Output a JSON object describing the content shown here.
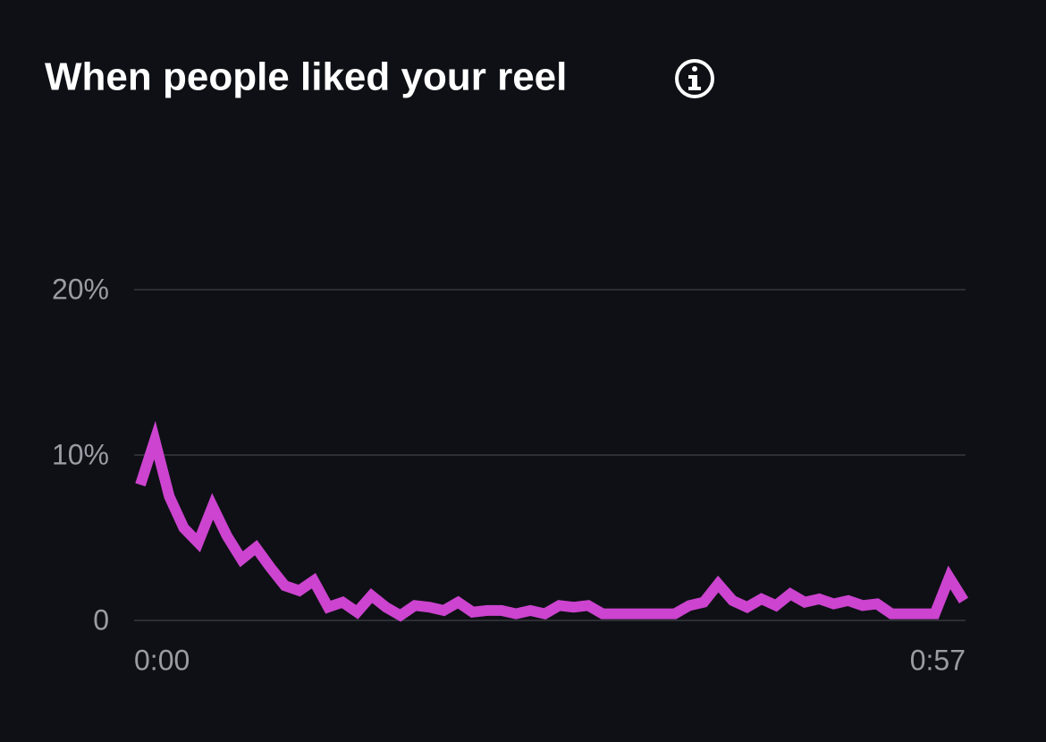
{
  "chart_data": {
    "type": "line",
    "title": "When people liked your reel",
    "x": [
      0,
      1,
      2,
      3,
      4,
      5,
      6,
      7,
      8,
      9,
      10,
      11,
      12,
      13,
      14,
      15,
      16,
      17,
      18,
      19,
      20,
      21,
      22,
      23,
      24,
      25,
      26,
      27,
      28,
      29,
      30,
      31,
      32,
      33,
      34,
      35,
      36,
      37,
      38,
      39,
      40,
      41,
      42,
      43,
      44,
      45,
      46,
      47,
      48,
      49,
      50,
      51,
      52,
      53,
      54,
      55,
      56,
      57
    ],
    "series": [
      {
        "color": "#cc44cf",
        "values": [
          8.2,
          10.9,
          7.5,
          5.6,
          4.7,
          6.9,
          5.1,
          3.7,
          4.4,
          3.2,
          2.1,
          1.8,
          2.4,
          0.8,
          1.1,
          0.5,
          1.5,
          0.8,
          0.3,
          0.9,
          0.8,
          0.6,
          1.1,
          0.5,
          0.6,
          0.6,
          0.4,
          0.6,
          0.4,
          0.9,
          0.8,
          0.9,
          0.4,
          0.4,
          0.4,
          0.4,
          0.4,
          0.4,
          0.9,
          1.1,
          2.2,
          1.2,
          0.8,
          1.3,
          0.9,
          1.6,
          1.1,
          1.3,
          1.0,
          1.2,
          0.9,
          1.0,
          0.4,
          0.4,
          0.4,
          0.4,
          2.6,
          1.2
        ]
      }
    ],
    "xlim": [
      0,
      57
    ],
    "xticks": [
      {
        "value": 0,
        "label": "0:00"
      },
      {
        "value": 57,
        "label": "0:57"
      }
    ],
    "ylim": [
      0,
      20
    ],
    "yticks": [
      0,
      {
        "value": 10,
        "label": "10%"
      },
      {
        "value": 20,
        "label": "20%"
      }
    ],
    "grid": true
  }
}
